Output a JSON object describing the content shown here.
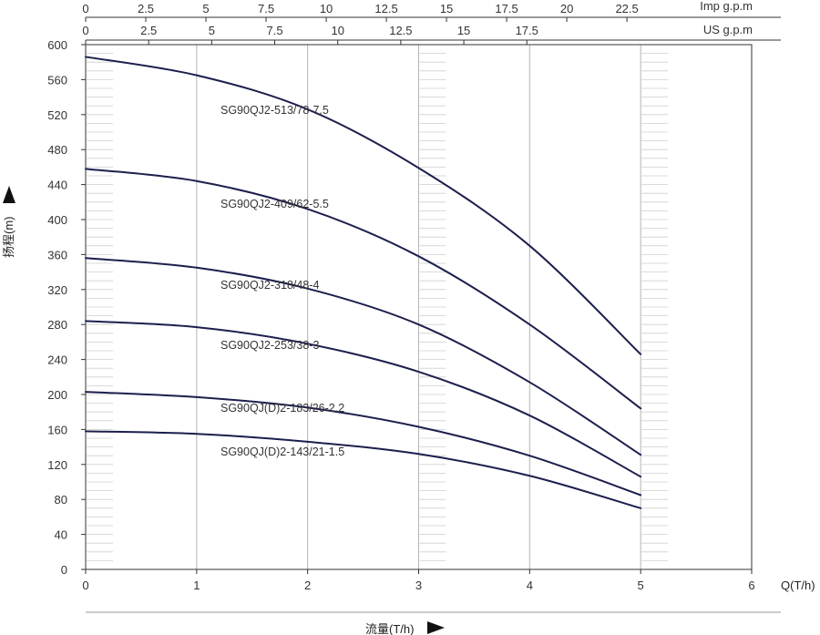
{
  "chart_data": {
    "type": "line",
    "title": "",
    "xlabel": "流量(T/h)",
    "ylabel": "扬程(m)",
    "x_unit_label": "Q(T/h)",
    "xlim": [
      0,
      6
    ],
    "ylim": [
      0,
      600
    ],
    "x_ticks": [
      "0",
      "1",
      "2",
      "3",
      "4",
      "5",
      "6"
    ],
    "y_ticks": [
      "0",
      "40",
      "80",
      "120",
      "160",
      "200",
      "240",
      "280",
      "320",
      "360",
      "400",
      "440",
      "480",
      "520",
      "560",
      "600"
    ],
    "top_axes": [
      {
        "label": "Imp g.p.m",
        "ticks": [
          "0",
          "2.5",
          "5",
          "7.5",
          "10",
          "12.5",
          "15",
          "17.5",
          "20",
          "22.5"
        ]
      },
      {
        "label": "US g.p.m",
        "ticks": [
          "0",
          "2.5",
          "5",
          "7.5",
          "10",
          "12.5",
          "15",
          "17.5"
        ]
      }
    ],
    "grid": true,
    "colors": {
      "curve": "#1c1f4d",
      "grid": "#b4b4b4",
      "axis": "#333333"
    },
    "series": [
      {
        "name": "SG90QJ2-513/78-7.5",
        "x": [
          0,
          1,
          2,
          3,
          4,
          5
        ],
        "y": [
          586,
          565,
          526,
          459,
          370,
          246
        ]
      },
      {
        "name": "SG90QJ2-409/62-5.5",
        "x": [
          0,
          1,
          2,
          3,
          4,
          5
        ],
        "y": [
          458,
          444,
          412,
          358,
          280,
          184
        ]
      },
      {
        "name": "SG90QJ2-318/48-4",
        "x": [
          0,
          1,
          2,
          3,
          4,
          5
        ],
        "y": [
          356,
          345,
          321,
          280,
          214,
          131
        ]
      },
      {
        "name": "SG90QJ2-253/38-3",
        "x": [
          0,
          1,
          2,
          3,
          4,
          5
        ],
        "y": [
          284,
          277,
          258,
          226,
          176,
          106
        ]
      },
      {
        "name": "SG90QJ(D)2-183/26-2.2",
        "x": [
          0,
          1,
          2,
          3,
          4,
          5
        ],
        "y": [
          203,
          197,
          185,
          163,
          130,
          85
        ]
      },
      {
        "name": "SG90QJ(D)2-143/21-1.5",
        "x": [
          0,
          1,
          2,
          3,
          4,
          5
        ],
        "y": [
          158,
          155,
          146,
          132,
          107,
          70
        ]
      }
    ]
  }
}
